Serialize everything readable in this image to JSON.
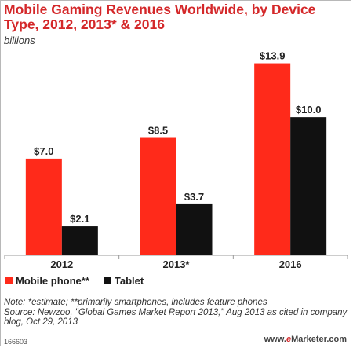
{
  "header": {
    "title": "Mobile Gaming Revenues Worldwide, by Device Type, 2012, 2013* & 2016",
    "subtitle": "billions"
  },
  "colors": {
    "mobile_phone": "#ff2a1a",
    "tablet": "#111111",
    "title": "#d4282a"
  },
  "chart_data": {
    "type": "bar",
    "title": "Mobile Gaming Revenues Worldwide, by Device Type, 2012, 2013* & 2016",
    "subtitle": "billions",
    "categories": [
      "2012",
      "2013*",
      "2016"
    ],
    "series": [
      {
        "name": "Mobile phone**",
        "values": [
          7.0,
          8.5,
          13.9
        ],
        "labels": [
          "$7.0",
          "$8.5",
          "$13.9"
        ]
      },
      {
        "name": "Tablet",
        "values": [
          2.1,
          3.7,
          10.0
        ],
        "labels": [
          "$2.1",
          "$3.7",
          "$10.0"
        ]
      }
    ],
    "ylim": [
      0,
      14.5
    ],
    "grid": false,
    "legend": "bottom-left"
  },
  "footer": {
    "note": "Note: *estimate; **primarily smartphones, includes feature phones",
    "source": "Source: Newzoo, \"Global Games Market Report 2013,\" Aug 2013 as cited in company blog, Oct 29, 2013",
    "code": "166603",
    "brand_prefix": "www.",
    "brand_e": "e",
    "brand_suffix": "Marketer.com"
  }
}
